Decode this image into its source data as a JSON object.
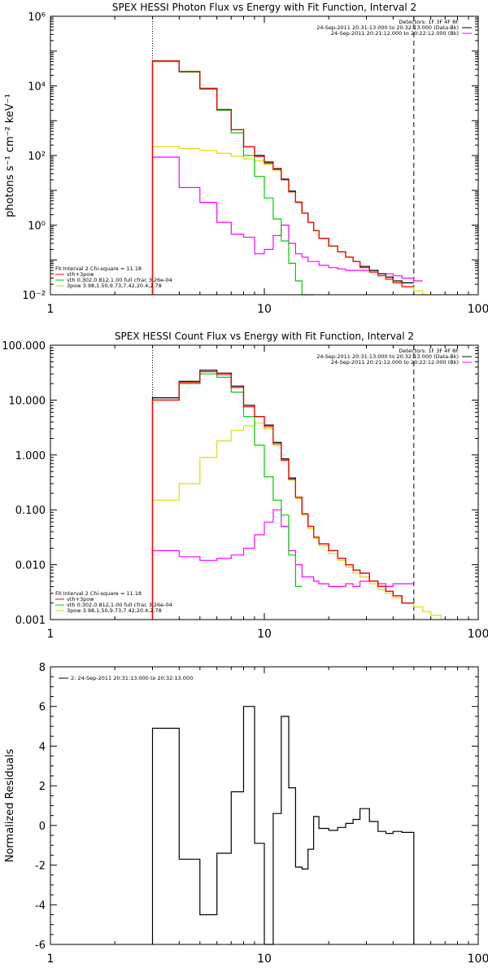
{
  "chart_data": [
    {
      "type": "line",
      "step": true,
      "title": "SPEX HESSI Photon Flux vs Energy with Fit Function, Interval 2",
      "ylabel": "photons s⁻¹ cm⁻² keV⁻¹",
      "xlabel": "",
      "xscale": "log",
      "yscale": "log",
      "xlim": [
        1,
        100
      ],
      "ylim": [
        0.01,
        1000000
      ],
      "xticks": [
        1,
        10,
        100
      ],
      "xtick_labels": [
        "1",
        "10",
        "100"
      ],
      "yticks": [
        0.01,
        1,
        100,
        10000,
        1000000
      ],
      "ytick_labels": [
        "10⁻²",
        "10⁰",
        "10²",
        "10⁴",
        "10⁶"
      ],
      "vlines": [
        {
          "x": 3,
          "style": "dotted"
        },
        {
          "x": 50,
          "style": "dashed"
        }
      ],
      "legend_right": {
        "lines": [
          "Detectors: 1F 3F 4F 8F",
          "24-Sep-2011 20:31:13.000 to 20:32:13.000 (Data-Bk)",
          "24-Sep-2011 20:21:12.000 to 20:22:12.000 (Bk)"
        ],
        "colors": [
          "",
          "#000000",
          "#ff00ff"
        ]
      },
      "legend_left": {
        "lines": [
          "Fit Interval 2   Chi-square = 11.18",
          "vth+3pow",
          "vth 0.302,0.812,1.00  full cfrac 3.26e-04",
          "3pow 3.98,1.50,9.73,7.42,20.4,2.78"
        ],
        "colors": [
          "",
          "#ff0000",
          "#00cc00",
          "#dddd00"
        ]
      },
      "edges": [
        3,
        4,
        5,
        6,
        7,
        8,
        9,
        10,
        11,
        12,
        13,
        14,
        15,
        16,
        17,
        18,
        20,
        22,
        24,
        26,
        28,
        31,
        34,
        37,
        40,
        44,
        50,
        55,
        60
      ],
      "series": [
        {
          "color": "#ff00ff",
          "values": [
            90,
            12,
            4.5,
            1.2,
            0.55,
            0.45,
            0.15,
            0.2,
            0.5,
            1.0,
            0.3,
            0.15,
            0.12,
            0.09,
            0.09,
            0.07,
            0.06,
            0.055,
            0.05,
            0.05,
            0.05,
            0.045,
            0.04,
            0.04,
            0.035,
            0.03,
            0.025,
            null
          ]
        },
        {
          "color": "#dddd00",
          "values": [
            180,
            160,
            140,
            115,
            95,
            80,
            70,
            55,
            38,
            20,
            9,
            4.5,
            2.2,
            1.2,
            0.7,
            0.42,
            0.25,
            0.17,
            0.12,
            0.09,
            0.06,
            0.045,
            0.035,
            0.028,
            0.022,
            0.017,
            0.013,
            0.01
          ]
        },
        {
          "color": "#00cc00",
          "values": [
            50000,
            25000,
            8000,
            2000,
            450,
            100,
            25,
            6,
            1.5,
            0.35,
            0.08,
            0.025,
            0.01,
            0.005,
            null,
            null,
            null,
            null,
            null,
            null,
            null,
            null,
            null,
            null,
            null,
            null,
            null,
            null
          ]
        },
        {
          "color": "#000000",
          "values": [
            52000,
            26000,
            8500,
            2100,
            550,
            180,
            100,
            65,
            42,
            21,
            9.5,
            4.6,
            2.2,
            1.2,
            0.7,
            0.42,
            0.25,
            0.17,
            0.12,
            0.09,
            0.065,
            0.05,
            0.04,
            0.032,
            0.025,
            0.022,
            null,
            null
          ]
        },
        {
          "color": "#ff0000",
          "values": [
            52000,
            26000,
            8500,
            2100,
            550,
            180,
            95,
            60,
            40,
            20,
            9,
            4.5,
            2.2,
            1.2,
            0.7,
            0.42,
            0.25,
            0.17,
            0.12,
            0.09,
            0.06,
            0.045,
            0.035,
            0.028,
            0.022,
            0.017,
            null,
            null
          ]
        }
      ]
    },
    {
      "type": "line",
      "step": true,
      "title": "SPEX HESSI Count Flux vs Energy with Fit Function, Interval 2",
      "xlabel": "",
      "ylabel": "",
      "xscale": "log",
      "yscale": "log",
      "xlim": [
        1,
        100
      ],
      "ylim": [
        0.001,
        100
      ],
      "xticks": [
        1,
        10,
        100
      ],
      "xtick_labels": [
        "1",
        "10",
        "100"
      ],
      "yticks": [
        0.001,
        0.01,
        0.1,
        1,
        10,
        100
      ],
      "ytick_labels": [
        "0.001",
        "0.010",
        "0.100",
        "1.000",
        "10.000",
        "100.000"
      ],
      "vlines": [
        {
          "x": 3,
          "style": "dotted"
        },
        {
          "x": 50,
          "style": "dashed"
        }
      ],
      "legend_right": {
        "lines": [
          "Detectors: 1F 3F 4F 8F",
          "24-Sep-2011 20:31:13.000 to 20:32:13.000 (Data-Bk)",
          "24-Sep-2011 20:21:12.000 to 20:22:12.000 (Bk)"
        ],
        "colors": [
          "",
          "#000000",
          "#ff00ff"
        ]
      },
      "legend_left": {
        "lines": [
          "Fit Interval 2   Chi-square = 11.18",
          "vth+3pow",
          "vth 0.302,0.812,1.00  full cfrac 3.26e-04",
          "3pow 3.98,1.50,9.73,7.42,20.4,2.78"
        ],
        "colors": [
          "",
          "#ff0000",
          "#00cc00",
          "#dddd00"
        ]
      },
      "edges": [
        3,
        4,
        5,
        6,
        7,
        8,
        9,
        10,
        11,
        12,
        13,
        14,
        15,
        16,
        17,
        18,
        20,
        22,
        24,
        26,
        28,
        31,
        34,
        37,
        40,
        44,
        50,
        55,
        60,
        67,
        75
      ],
      "series": [
        {
          "color": "#ff00ff",
          "values": [
            0.018,
            0.014,
            0.012,
            0.013,
            0.015,
            0.02,
            0.035,
            0.06,
            0.1,
            0.05,
            0.018,
            0.01,
            0.006,
            0.006,
            0.005,
            0.0045,
            0.004,
            0.004,
            0.0045,
            0.004,
            0.005,
            0.005,
            0.0045,
            0.004,
            0.0045,
            0.0045,
            null,
            null,
            null,
            null
          ]
        },
        {
          "color": "#dddd00",
          "values": [
            0.15,
            0.3,
            0.9,
            1.8,
            2.8,
            3.4,
            3.8,
            3.0,
            1.5,
            0.8,
            0.35,
            0.16,
            0.08,
            0.045,
            0.03,
            0.022,
            0.016,
            0.012,
            0.009,
            0.007,
            0.006,
            0.0045,
            0.0035,
            0.003,
            0.0025,
            0.002,
            0.0017,
            0.0014,
            0.0012,
            0.001
          ]
        },
        {
          "color": "#00cc00",
          "values": [
            10,
            20,
            30,
            26,
            14,
            5,
            1.5,
            0.4,
            0.15,
            0.08,
            0.015,
            0.004,
            null,
            null,
            null,
            null,
            null,
            null,
            null,
            null,
            null,
            null,
            null,
            null,
            null,
            null,
            null,
            null,
            null,
            null
          ]
        },
        {
          "color": "#000000",
          "values": [
            11,
            22,
            35,
            31,
            18,
            8,
            5,
            3.5,
            1.7,
            0.85,
            0.38,
            0.17,
            0.085,
            0.05,
            0.032,
            0.024,
            0.018,
            0.013,
            0.01,
            0.008,
            0.007,
            0.005,
            0.004,
            0.0033,
            0.0027,
            0.002,
            null,
            null,
            null,
            null
          ]
        },
        {
          "color": "#ff0000",
          "values": [
            10,
            21,
            33,
            29,
            17,
            7.5,
            5,
            3.3,
            1.6,
            0.8,
            0.36,
            0.17,
            0.085,
            0.05,
            0.032,
            0.024,
            0.018,
            0.013,
            0.01,
            0.008,
            0.007,
            0.005,
            0.004,
            0.0033,
            0.0027,
            0.002,
            null,
            null,
            null,
            null
          ]
        }
      ]
    },
    {
      "type": "line",
      "step": true,
      "title": "",
      "xlabel": "",
      "ylabel": "Normalized Residuals",
      "xscale": "log",
      "yscale": "linear",
      "xlim": [
        1,
        100
      ],
      "ylim": [
        -6,
        8
      ],
      "xticks": [
        1,
        10,
        100
      ],
      "xtick_labels": [
        "1",
        "10",
        "100"
      ],
      "yticks": [
        -6,
        -4,
        -2,
        0,
        2,
        4,
        6,
        8
      ],
      "ytick_labels": [
        "-6",
        "-4",
        "-2",
        "0",
        "2",
        "4",
        "6",
        "8"
      ],
      "legend_left": {
        "lines": [
          "2: 24-Sep-2011 20:31:13.000 to 20:32:13.000"
        ],
        "colors": [
          "#000000"
        ]
      },
      "edges": [
        3,
        4,
        5,
        6,
        7,
        8,
        9,
        10,
        11,
        12,
        13,
        14,
        15,
        16,
        17,
        18,
        20,
        22,
        24,
        26,
        28,
        31,
        34,
        37,
        40,
        44,
        50
      ],
      "series": [
        {
          "color": "#000000",
          "values": [
            4.9,
            -1.7,
            -4.5,
            -1.4,
            1.7,
            6.0,
            -0.9,
            -6.0,
            0.6,
            5.5,
            1.9,
            -2.1,
            -2.2,
            -1.2,
            0.45,
            -0.15,
            -0.25,
            -0.1,
            0.1,
            0.3,
            0.85,
            0.2,
            -0.3,
            -0.4,
            -0.3,
            -0.35
          ]
        }
      ]
    }
  ]
}
